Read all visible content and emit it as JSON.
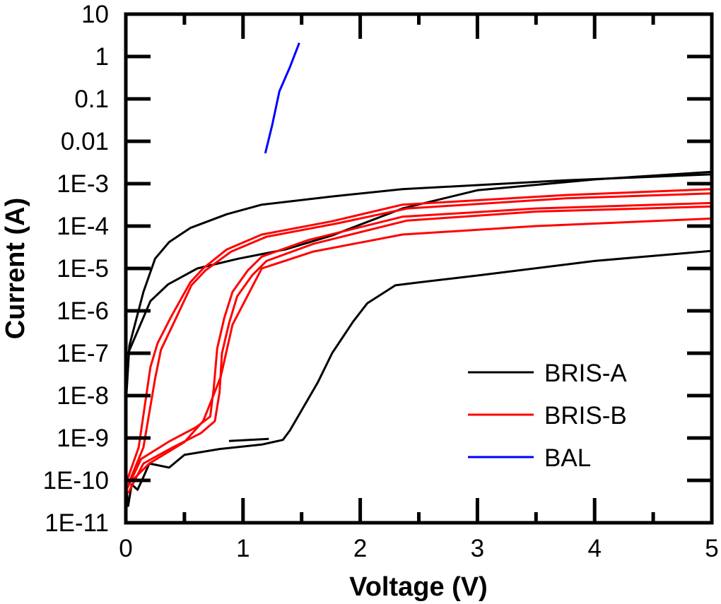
{
  "chart_data": {
    "type": "line",
    "title": "",
    "xlabel": "Voltage (V)",
    "ylabel": "Current (A)",
    "xlim": [
      0,
      5
    ],
    "ylim": [
      1e-11,
      10
    ],
    "yscale": "log",
    "grid": false,
    "legend_position": "lower-right",
    "x_ticks": [
      "0",
      "1",
      "2",
      "3",
      "4",
      "5"
    ],
    "y_ticks": [
      "10",
      "1",
      "0.1",
      "0.01",
      "1E-3",
      "1E-4",
      "1E-5",
      "1E-6",
      "1E-7",
      "1E-8",
      "1E-9",
      "1E-10",
      "1E-11"
    ],
    "legend": [
      {
        "name": "BRIS-A",
        "color": "#000000"
      },
      {
        "name": "BRIS-B",
        "color": "#ff0000"
      },
      {
        "name": "BAL",
        "color": "#0000ff"
      }
    ],
    "series": [
      {
        "name": "BRIS-A",
        "color": "#000000",
        "points": [
          [
            0.005,
            1e-08
          ],
          [
            0.03,
            1.5e-07
          ],
          [
            0.15,
            2.8e-06
          ],
          [
            0.25,
            1.7e-05
          ],
          [
            0.37,
            4.2e-05
          ],
          [
            0.55,
            9e-05
          ],
          [
            0.86,
            0.00019
          ],
          [
            1.16,
            0.00032
          ],
          [
            1.76,
            0.0005
          ],
          [
            2.36,
            0.00074
          ],
          [
            3.75,
            0.0012
          ],
          [
            5,
            0.00166
          ]
        ]
      },
      {
        "name": "BRIS-A",
        "color": "#000000",
        "points": [
          [
            0.02,
            1e-07
          ],
          [
            0.21,
            1.7e-06
          ],
          [
            0.36,
            4.2e-06
          ],
          [
            0.61,
            1e-05
          ],
          [
            0.96,
            1.7e-05
          ],
          [
            1.36,
            2.8e-05
          ],
          [
            1.76,
            6e-05
          ],
          [
            2.36,
            0.00026
          ],
          [
            3.0,
            0.0007
          ],
          [
            4.0,
            0.00126
          ],
          [
            5,
            0.0019
          ]
        ]
      },
      {
        "name": "BRIS-A",
        "color": "#000000",
        "points": [
          [
            0,
            1e-10
          ],
          [
            0.02,
            2.5e-11
          ],
          [
            0.05,
            8e-11
          ],
          [
            0.1,
            6e-11
          ],
          [
            0.15,
            1.2e-10
          ],
          [
            0.2,
            2.5e-10
          ],
          [
            0.37,
            2e-10
          ],
          [
            0.5,
            4e-10
          ],
          [
            0.8,
            5.5e-10
          ],
          [
            1.16,
            7e-10
          ],
          [
            1.34,
            9e-10
          ],
          [
            1.4,
            1.5e-09
          ],
          [
            1.52,
            5.6e-09
          ],
          [
            1.64,
            2.1e-08
          ],
          [
            1.76,
            1e-07
          ],
          [
            1.94,
            5.6e-07
          ],
          [
            2.06,
            1.5e-06
          ],
          [
            2.3,
            4e-06
          ],
          [
            2.5,
            4.7e-06
          ],
          [
            3,
            6.8e-06
          ],
          [
            4,
            1.5e-05
          ],
          [
            5,
            2.6e-05
          ]
        ]
      },
      {
        "name": "BRIS-A",
        "color": "#000000",
        "points": [
          [
            0.88,
            8.5e-10
          ],
          [
            1.22,
            9.5e-10
          ]
        ]
      },
      {
        "name": "BRIS-B",
        "color": "#ff0000",
        "points": [
          [
            0.01,
            1e-10
          ],
          [
            0.11,
            6e-10
          ],
          [
            0.21,
            4.7e-08
          ],
          [
            0.27,
            1.7e-07
          ],
          [
            0.39,
            7.6e-07
          ],
          [
            0.55,
            4.7e-06
          ],
          [
            0.66,
            1e-05
          ],
          [
            0.86,
            2.8e-05
          ],
          [
            1.16,
            6.3e-05
          ],
          [
            1.76,
            0.00013
          ],
          [
            2.36,
            0.00032
          ],
          [
            3.75,
            0.00054
          ],
          [
            5,
            0.00074
          ]
        ]
      },
      {
        "name": "BRIS-B",
        "color": "#ff0000",
        "points": [
          [
            0.02,
            8e-11
          ],
          [
            0.15,
            6e-10
          ],
          [
            0.25,
            2.5e-08
          ],
          [
            0.3,
            1.2e-07
          ],
          [
            0.42,
            6e-07
          ],
          [
            0.56,
            4e-06
          ],
          [
            0.68,
            9e-06
          ],
          [
            0.9,
            2.5e-05
          ],
          [
            1.2,
            5.6e-05
          ],
          [
            1.8,
            0.000115
          ],
          [
            2.4,
            0.00026
          ],
          [
            3.75,
            0.00045
          ],
          [
            5,
            0.00059
          ]
        ]
      },
      {
        "name": "BRIS-B",
        "color": "#ff0000",
        "points": [
          [
            0.01,
            6.3e-11
          ],
          [
            0.13,
            3.2e-10
          ],
          [
            0.37,
            8.3e-10
          ],
          [
            0.6,
            1.8e-09
          ],
          [
            0.72,
            3.2e-09
          ],
          [
            0.75,
            1.5e-08
          ],
          [
            0.78,
            1.3e-07
          ],
          [
            0.84,
            6.8e-07
          ],
          [
            0.91,
            2.8e-06
          ],
          [
            1.04,
            8.9e-06
          ],
          [
            1.16,
            1.9e-05
          ],
          [
            1.56,
            4.7e-05
          ],
          [
            2.36,
            0.000166
          ],
          [
            3.5,
            0.00026
          ],
          [
            5,
            0.00035
          ]
        ]
      },
      {
        "name": "BRIS-B",
        "color": "#ff0000",
        "points": [
          [
            0.02,
            5e-11
          ],
          [
            0.15,
            2.5e-10
          ],
          [
            0.4,
            6e-10
          ],
          [
            0.64,
            1.3e-09
          ],
          [
            0.76,
            2.5e-09
          ],
          [
            0.8,
            1.2e-08
          ],
          [
            0.82,
            1e-07
          ],
          [
            0.88,
            5e-07
          ],
          [
            0.95,
            2.2e-06
          ],
          [
            1.08,
            7e-06
          ],
          [
            1.2,
            1.5e-05
          ],
          [
            1.6,
            3.8e-05
          ],
          [
            2.4,
            0.000135
          ],
          [
            3.5,
            0.00022
          ],
          [
            5,
            0.00029
          ]
        ]
      },
      {
        "name": "BRIS-B",
        "color": "#ff0000",
        "points": [
          [
            0.02,
            8e-11
          ],
          [
            0.2,
            2.5e-10
          ],
          [
            0.5,
            8e-10
          ],
          [
            0.66,
            2.5e-09
          ],
          [
            0.73,
            7.6e-09
          ],
          [
            0.81,
            2.8e-08
          ],
          [
            0.91,
            4.7e-07
          ],
          [
            1.16,
            1e-05
          ],
          [
            1.6,
            2.5e-05
          ],
          [
            2.36,
            6.3e-05
          ],
          [
            3.5,
            0.0001
          ],
          [
            5,
            0.00015
          ]
        ]
      },
      {
        "name": "BAL",
        "color": "#0000ff",
        "points": [
          [
            1.19,
            0.0052
          ],
          [
            1.25,
            0.025
          ],
          [
            1.31,
            0.15
          ],
          [
            1.4,
            0.56
          ],
          [
            1.48,
            2.1
          ]
        ]
      }
    ]
  }
}
